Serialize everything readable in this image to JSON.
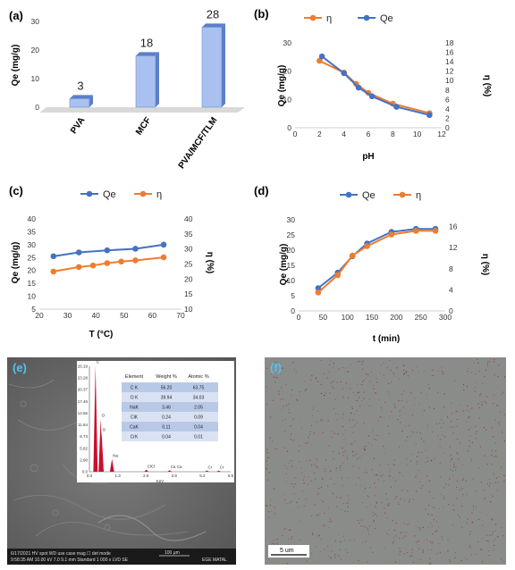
{
  "colors": {
    "orange": "#ED7D31",
    "blue": "#4472C4",
    "bar": "#A9C1EE",
    "bar_dark": "#5B7FC9",
    "sem_bg": "#6a6a6a",
    "map_bg": "#8a8c8a",
    "map_dots": "#8a2a2a"
  },
  "chart_data": [
    {
      "panel": "(a)",
      "type": "bar",
      "categories": [
        "PVA",
        "MCF",
        "PVA/MCF/TLM"
      ],
      "values": [
        3,
        18,
        28
      ],
      "data_labels": [
        "3",
        "18",
        "28"
      ],
      "ylabel": "Qe (mg/g)",
      "ylim": [
        0,
        30
      ],
      "yticks": [
        "0",
        "10",
        "20",
        "30"
      ],
      "grid": false
    },
    {
      "panel": "(b)",
      "type": "line",
      "legend": [
        "η",
        "Qe"
      ],
      "series": [
        {
          "name": "η",
          "color": "#ED7D31",
          "axis": "right",
          "x": [
            2,
            4,
            5,
            6,
            8,
            11
          ],
          "values": [
            14.2,
            11.7,
            9.3,
            7.4,
            5.1,
            3.1
          ]
        },
        {
          "name": "Qe",
          "color": "#4472C4",
          "axis": "left",
          "x": [
            2.2,
            4,
            5.2,
            6.3,
            8.3,
            11
          ],
          "values": [
            25.2,
            19.3,
            14.2,
            11.1,
            7.4,
            4.5
          ]
        }
      ],
      "xlabel": "pH",
      "ylabel": "Qe (mg/g)",
      "y2label": "η (%)",
      "ylim": [
        0,
        30
      ],
      "yticks": [
        "0",
        "10",
        "20",
        "30"
      ],
      "y2lim": [
        0,
        18
      ],
      "y2ticks": [
        "0",
        "2",
        "4",
        "6",
        "8",
        "10",
        "12",
        "14",
        "16",
        "18"
      ],
      "xlim": [
        0,
        12
      ],
      "xticks": [
        "0",
        "2",
        "4",
        "6",
        "8",
        "10",
        "12"
      ],
      "grid": false,
      "legend_position": "top"
    },
    {
      "panel": "(c)",
      "type": "line",
      "legend": [
        "Qe",
        "η"
      ],
      "series": [
        {
          "name": "Qe",
          "color": "#4472C4",
          "axis": "left",
          "x": [
            25,
            34,
            44,
            54,
            64
          ],
          "values": [
            25.5,
            27,
            27.8,
            28.4,
            30
          ]
        },
        {
          "name": "η",
          "color": "#ED7D31",
          "axis": "right",
          "x": [
            25,
            34,
            39,
            44,
            49,
            54,
            64
          ],
          "values": [
            22.5,
            24,
            24.5,
            25.3,
            25.8,
            26.2,
            27.2
          ]
        }
      ],
      "xlabel": "T (°C)",
      "ylabel": "Qe (mg/g)",
      "y2label": "η (%)",
      "ylim": [
        5,
        40
      ],
      "yticks": [
        "5",
        "10",
        "15",
        "20",
        "25",
        "30",
        "35",
        "40"
      ],
      "y2lim": [
        10,
        40
      ],
      "y2ticks": [
        "10",
        "15",
        "20",
        "25",
        "30",
        "35",
        "40"
      ],
      "xlim": [
        20,
        70
      ],
      "xticks": [
        "20",
        "30",
        "40",
        "50",
        "60",
        "70"
      ],
      "grid": false,
      "legend_position": "top"
    },
    {
      "panel": "(d)",
      "type": "line",
      "legend": [
        "Qe",
        "η"
      ],
      "series": [
        {
          "name": "Qe",
          "color": "#4472C4",
          "axis": "left",
          "x": [
            40,
            80,
            110,
            140,
            190,
            240,
            280
          ],
          "values": [
            7.5,
            12.6,
            18,
            22.2,
            26,
            27,
            27
          ]
        },
        {
          "name": "η",
          "color": "#ED7D31",
          "axis": "right",
          "x": [
            40,
            80,
            110,
            140,
            190,
            240,
            280
          ],
          "values": [
            3.5,
            6.8,
            10.5,
            12.3,
            14.5,
            15.2,
            15.2
          ]
        }
      ],
      "xlabel": "t (min)",
      "ylabel": "Qe (mg/g)",
      "y2label": "η (%)",
      "ylim": [
        0,
        30
      ],
      "yticks": [
        "0",
        "5",
        "10",
        "15",
        "20",
        "25",
        "30"
      ],
      "y2lim": [
        0,
        17.3
      ],
      "y2ticks": [
        "0",
        "4",
        "8",
        "12",
        "16"
      ],
      "xlim": [
        0,
        300
      ],
      "xticks": [
        "0",
        "50",
        "100",
        "150",
        "200",
        "250",
        "300"
      ],
      "grid": false,
      "legend_position": "top"
    },
    {
      "panel": "(e)",
      "type": "table",
      "columns": [
        "Element",
        "Weight %",
        "Atomic %"
      ],
      "rows": [
        [
          "C K",
          "56.20",
          "63.75"
        ],
        [
          "O K",
          "39.94",
          "34.03"
        ],
        [
          "NaK",
          "3.46",
          "2.05"
        ],
        [
          "ClK",
          "0.24",
          "0.09"
        ],
        [
          "CaK",
          "0.11",
          "0.04"
        ],
        [
          "CrK",
          "0.04",
          "0.01"
        ]
      ],
      "spectrum": {
        "xlabel": "KeV",
        "xticks": [
          "0.0",
          "1.3",
          "2.6",
          "3.9",
          "5.2",
          "6.5"
        ],
        "yticks": [
          "0.0",
          "2.90",
          "5.82",
          "8.73",
          "11.64",
          "14.55",
          "17.46",
          "20.37",
          "23.28",
          "26.19"
        ],
        "peaks": [
          {
            "label": "C",
            "kev": 0.28,
            "height": 26.5
          },
          {
            "label": "O",
            "kev": 0.52,
            "height": 13.2
          },
          {
            "label": "O",
            "kev": 0.56,
            "height": 9.6
          },
          {
            "label": "Na",
            "kev": 1.04,
            "height": 3.2
          },
          {
            "label": "ClCl",
            "kev": 2.62,
            "height": 0.5
          },
          {
            "label": "Ca Ca",
            "kev": 3.69,
            "height": 0.4
          },
          {
            "label": "Cr",
            "kev": 5.41,
            "height": 0.3
          },
          {
            "label": "Cr",
            "kev": 5.95,
            "height": 0.3
          }
        ]
      }
    }
  ],
  "panels": {
    "a": "(a)",
    "b": "(b)",
    "c": "(c)",
    "d": "(d)",
    "e": "(e)",
    "f": "(f)"
  },
  "sem_info": {
    "line1": "6/17/2021  HV    spot  WD    use case   mag  ☐  det   mode",
    "line2": "9:58:35 AM  10.00 kV  7.0  9.1 mm  Standard  1 000 x  LVD  SE",
    "scale_text": "100 μm",
    "brand": "EGE MATAL"
  },
  "map_scale": "5 um"
}
